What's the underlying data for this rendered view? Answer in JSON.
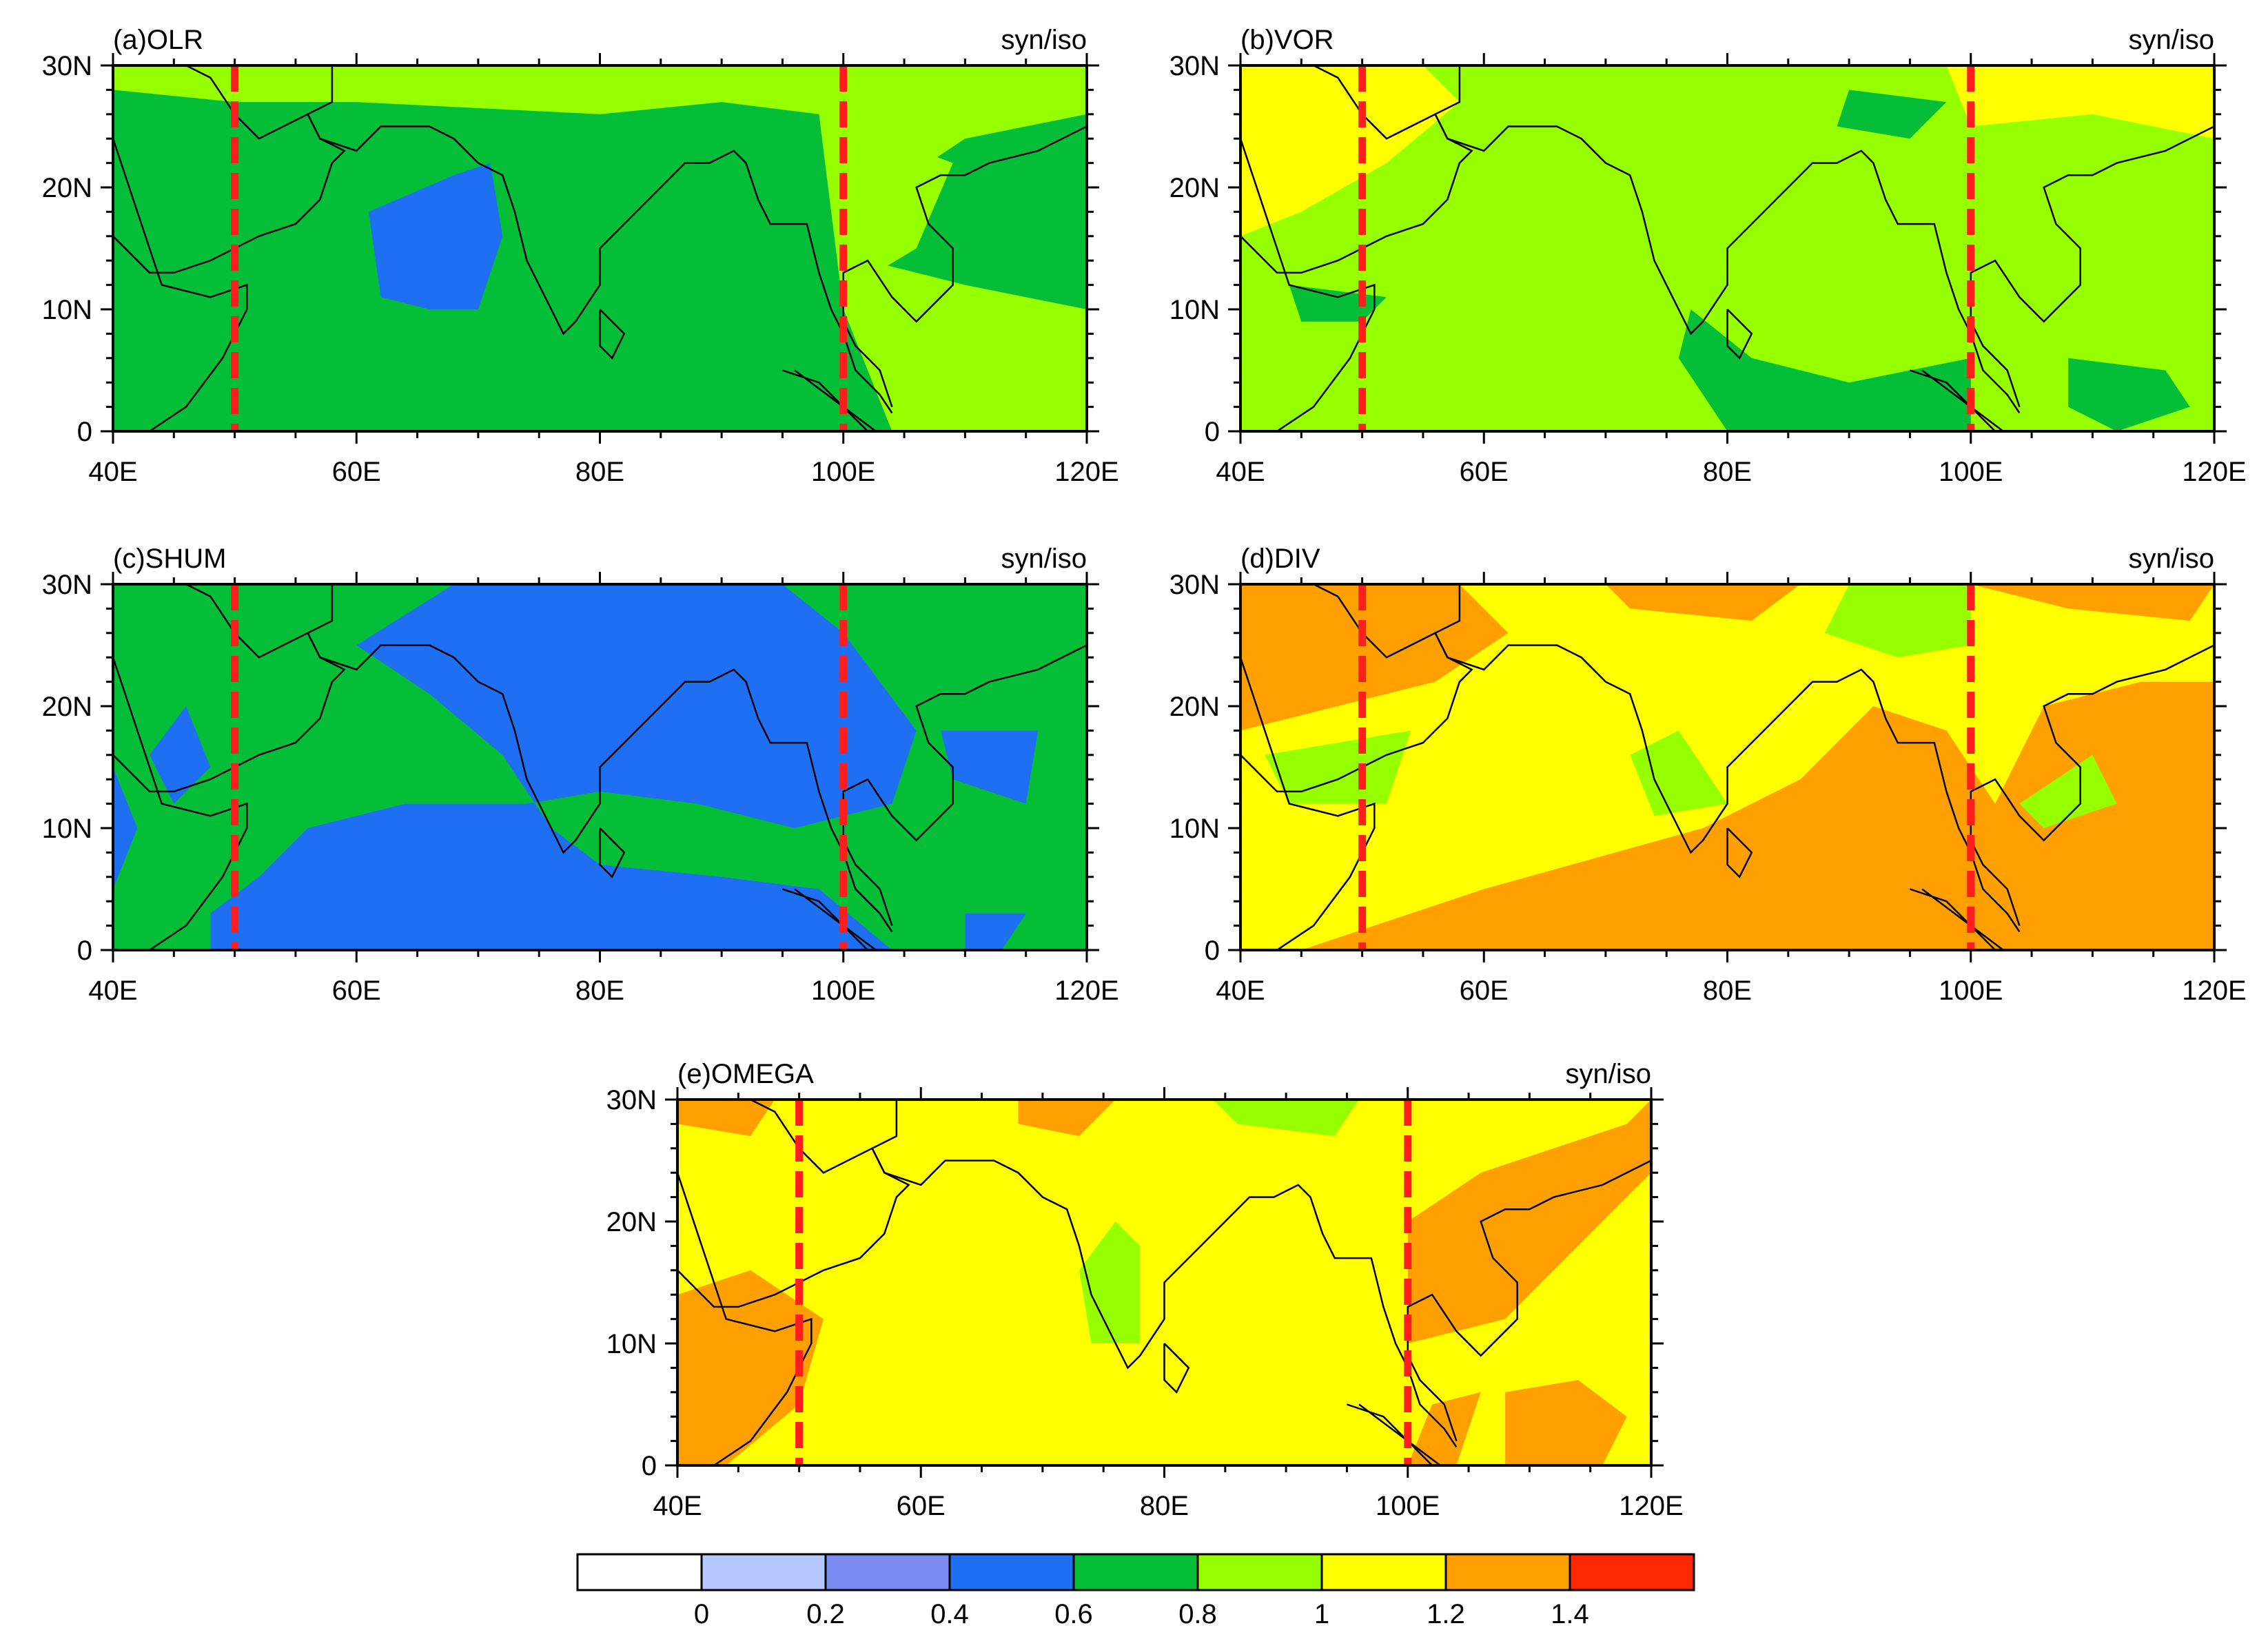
{
  "chart_data": {
    "type": "heatmap",
    "x_ticks": [
      "40E",
      "60E",
      "80E",
      "100E",
      "120E"
    ],
    "x_range": [
      40,
      120
    ],
    "y_ticks": [
      "0",
      "10N",
      "20N",
      "30N"
    ],
    "y_range": [
      0,
      30
    ],
    "reference_lines_lon": [
      50,
      100
    ],
    "colorbar": {
      "levels": [
        "0",
        "0.2",
        "0.4",
        "0.6",
        "0.8",
        "1",
        "1.2",
        "1.4"
      ],
      "colors": [
        "#ffffff",
        "#b4c8ff",
        "#7a8cf2",
        "#1f6ff2",
        "#05be37",
        "#96ff00",
        "#ffff00",
        "#ffa000",
        "#ff2800"
      ]
    },
    "panels": [
      {
        "id": "a",
        "title": "(a)OLR",
        "ratio_label": "syn/iso",
        "background_class": "0.6-0.8",
        "regions": [
          {
            "class": "0.8-1",
            "lonlat": [
              [
                40,
                30
              ],
              [
                120,
                30
              ],
              [
                120,
                26
              ],
              [
                110,
                24
              ],
              [
                104,
                20
              ],
              [
                102,
                14
              ],
              [
                110,
                12
              ],
              [
                120,
                10
              ],
              [
                120,
                0
              ],
              [
                104,
                0
              ],
              [
                100,
                10
              ],
              [
                98,
                26
              ],
              [
                90,
                27
              ],
              [
                80,
                26
              ],
              [
                60,
                27
              ],
              [
                50,
                27
              ],
              [
                40,
                28
              ]
            ]
          },
          {
            "class": "0.4-0.6",
            "lonlat": [
              [
                61,
                18
              ],
              [
                68,
                21
              ],
              [
                71,
                22
              ],
              [
                72,
                16
              ],
              [
                70,
                10
              ],
              [
                66,
                10
              ],
              [
                62,
                11
              ]
            ]
          },
          {
            "class": "0.8-1",
            "lonlat": [
              [
                101,
                25
              ],
              [
                109,
                22
              ],
              [
                106,
                15
              ],
              [
                101,
                12
              ]
            ]
          }
        ]
      },
      {
        "id": "b",
        "title": "(b)VOR",
        "ratio_label": "syn/iso",
        "background_class": "0.8-1",
        "regions": [
          {
            "class": "1-1.2",
            "lonlat": [
              [
                40,
                30
              ],
              [
                55,
                30
              ],
              [
                58,
                27
              ],
              [
                52,
                22
              ],
              [
                45,
                18
              ],
              [
                40,
                16
              ]
            ]
          },
          {
            "class": "1-1.2",
            "lonlat": [
              [
                98,
                30
              ],
              [
                120,
                30
              ],
              [
                120,
                24
              ],
              [
                110,
                26
              ],
              [
                100,
                25
              ]
            ]
          },
          {
            "class": "0.6-0.8",
            "lonlat": [
              [
                77,
                10
              ],
              [
                82,
                6
              ],
              [
                90,
                4
              ],
              [
                100,
                6
              ],
              [
                100,
                0
              ],
              [
                80,
                0
              ],
              [
                76,
                6
              ]
            ]
          },
          {
            "class": "0.6-0.8",
            "lonlat": [
              [
                108,
                6
              ],
              [
                116,
                5
              ],
              [
                118,
                2
              ],
              [
                112,
                0
              ],
              [
                108,
                2
              ]
            ]
          },
          {
            "class": "0.6-0.8",
            "lonlat": [
              [
                90,
                28
              ],
              [
                98,
                27
              ],
              [
                95,
                24
              ],
              [
                89,
                25
              ]
            ]
          },
          {
            "class": "0.6-0.8",
            "lonlat": [
              [
                44,
                12
              ],
              [
                52,
                11
              ],
              [
                50,
                9
              ],
              [
                45,
                9
              ]
            ]
          }
        ]
      },
      {
        "id": "c",
        "title": "(c)SHUM",
        "ratio_label": "syn/iso",
        "background_class": "0.6-0.8",
        "regions": [
          {
            "class": "0.4-0.6",
            "lonlat": [
              [
                68,
                30
              ],
              [
                95,
                30
              ],
              [
                100,
                26
              ],
              [
                106,
                18
              ],
              [
                104,
                12
              ],
              [
                96,
                10
              ],
              [
                88,
                12
              ],
              [
                80,
                13
              ],
              [
                74,
                12
              ],
              [
                64,
                12
              ],
              [
                56,
                10
              ],
              [
                52,
                6
              ],
              [
                48,
                3
              ],
              [
                48,
                0
              ],
              [
                104,
                0
              ],
              [
                98,
                5
              ],
              [
                90,
                6
              ],
              [
                80,
                7
              ],
              [
                76,
                10
              ],
              [
                72,
                16
              ],
              [
                66,
                21
              ],
              [
                60,
                25
              ]
            ]
          },
          {
            "class": "0.4-0.6",
            "lonlat": [
              [
                43,
                16
              ],
              [
                46,
                20
              ],
              [
                48,
                15
              ],
              [
                45,
                12
              ]
            ]
          },
          {
            "class": "0.4-0.6",
            "lonlat": [
              [
                40,
                15
              ],
              [
                42,
                10
              ],
              [
                40,
                5
              ]
            ]
          },
          {
            "class": "0.4-0.6",
            "lonlat": [
              [
                108,
                18
              ],
              [
                116,
                18
              ],
              [
                115,
                12
              ],
              [
                109,
                14
              ]
            ]
          },
          {
            "class": "0.4-0.6",
            "lonlat": [
              [
                110,
                3
              ],
              [
                115,
                3
              ],
              [
                113,
                0
              ],
              [
                110,
                0
              ]
            ]
          }
        ]
      },
      {
        "id": "d",
        "title": "(d)DIV",
        "ratio_label": "syn/iso",
        "background_class": "1-1.2",
        "regions": [
          {
            "class": "1.2-1.4",
            "lonlat": [
              [
                40,
                30
              ],
              [
                58,
                30
              ],
              [
                62,
                26
              ],
              [
                56,
                22
              ],
              [
                48,
                20
              ],
              [
                40,
                18
              ]
            ]
          },
          {
            "class": "1.2-1.4",
            "lonlat": [
              [
                45,
                0
              ],
              [
                60,
                5
              ],
              [
                78,
                10
              ],
              [
                86,
                14
              ],
              [
                92,
                20
              ],
              [
                98,
                18
              ],
              [
                102,
                12
              ],
              [
                106,
                20
              ],
              [
                114,
                22
              ],
              [
                120,
                22
              ],
              [
                120,
                0
              ]
            ]
          },
          {
            "class": "1.2-1.4",
            "lonlat": [
              [
                70,
                30
              ],
              [
                86,
                30
              ],
              [
                82,
                27
              ],
              [
                72,
                28
              ]
            ]
          },
          {
            "class": "1.2-1.4",
            "lonlat": [
              [
                100,
                30
              ],
              [
                120,
                30
              ],
              [
                118,
                27
              ],
              [
                108,
                28
              ]
            ]
          },
          {
            "class": "0.8-1",
            "lonlat": [
              [
                90,
                30
              ],
              [
                100,
                30
              ],
              [
                100,
                25
              ],
              [
                94,
                24
              ],
              [
                88,
                26
              ]
            ]
          },
          {
            "class": "0.8-1",
            "lonlat": [
              [
                42,
                16
              ],
              [
                54,
                18
              ],
              [
                52,
                12
              ],
              [
                44,
                12
              ]
            ]
          },
          {
            "class": "0.8-1",
            "lonlat": [
              [
                72,
                16
              ],
              [
                76,
                18
              ],
              [
                80,
                12
              ],
              [
                74,
                11
              ]
            ]
          },
          {
            "class": "0.8-1",
            "lonlat": [
              [
                104,
                12
              ],
              [
                110,
                16
              ],
              [
                112,
                12
              ],
              [
                106,
                10
              ]
            ]
          }
        ]
      },
      {
        "id": "e",
        "title": "(e)OMEGA",
        "ratio_label": "syn/iso",
        "background_class": "1-1.2",
        "regions": [
          {
            "class": "1.2-1.4",
            "lonlat": [
              [
                40,
                14
              ],
              [
                46,
                16
              ],
              [
                52,
                12
              ],
              [
                50,
                5
              ],
              [
                44,
                0
              ],
              [
                40,
                0
              ]
            ]
          },
          {
            "class": "1.2-1.4",
            "lonlat": [
              [
                40,
                30
              ],
              [
                48,
                30
              ],
              [
                46,
                27
              ],
              [
                40,
                28
              ]
            ]
          },
          {
            "class": "1.2-1.4",
            "lonlat": [
              [
                100,
                20
              ],
              [
                106,
                24
              ],
              [
                112,
                26
              ],
              [
                118,
                28
              ],
              [
                120,
                30
              ],
              [
                120,
                24
              ],
              [
                114,
                18
              ],
              [
                108,
                12
              ],
              [
                100,
                10
              ]
            ]
          },
          {
            "class": "1.2-1.4",
            "lonlat": [
              [
                102,
                5
              ],
              [
                106,
                6
              ],
              [
                104,
                0
              ],
              [
                100,
                0
              ]
            ]
          },
          {
            "class": "1.2-1.4",
            "lonlat": [
              [
                108,
                6
              ],
              [
                114,
                7
              ],
              [
                118,
                4
              ],
              [
                116,
                0
              ],
              [
                108,
                0
              ]
            ]
          },
          {
            "class": "1.2-1.4",
            "lonlat": [
              [
                68,
                30
              ],
              [
                76,
                30
              ],
              [
                73,
                27
              ],
              [
                68,
                28
              ]
            ]
          },
          {
            "class": "0.8-1",
            "lonlat": [
              [
                73,
                16
              ],
              [
                76,
                20
              ],
              [
                78,
                18
              ],
              [
                78,
                10
              ],
              [
                74,
                10
              ]
            ]
          },
          {
            "class": "0.8-1",
            "lonlat": [
              [
                84,
                30
              ],
              [
                96,
                30
              ],
              [
                94,
                27
              ],
              [
                86,
                28
              ]
            ]
          }
        ]
      }
    ]
  }
}
